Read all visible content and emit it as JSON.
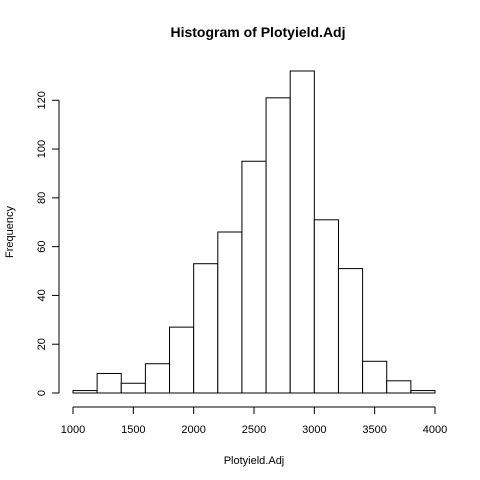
{
  "chart_data": {
    "type": "bar",
    "title": "Histogram of Plotyield.Adj",
    "xlabel": "Plotyield.Adj",
    "ylabel": "Frequency",
    "bin_edges": [
      1000,
      1200,
      1400,
      1600,
      1800,
      2000,
      2200,
      2400,
      2600,
      2800,
      3000,
      3200,
      3400,
      3600,
      3800,
      4000
    ],
    "values": [
      1,
      8,
      4,
      12,
      27,
      53,
      66,
      95,
      121,
      132,
      71,
      51,
      13,
      5,
      1
    ],
    "xlim": [
      1000,
      4000
    ],
    "ylim": [
      0,
      132
    ],
    "x_ticks": [
      1000,
      1500,
      2000,
      2500,
      3000,
      3500,
      4000
    ],
    "y_ticks": [
      0,
      20,
      40,
      60,
      80,
      100,
      120
    ],
    "grid": false,
    "legend": "none"
  }
}
